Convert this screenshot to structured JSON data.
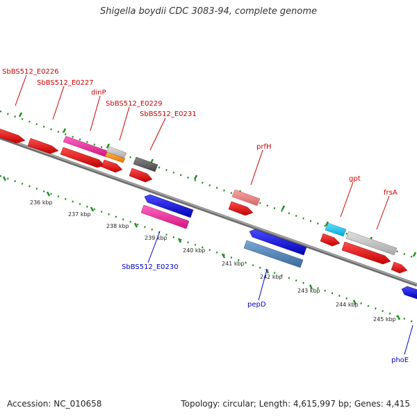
{
  "title": "Shigella boydii CDC 3083-94, complete genome",
  "footer": {
    "accession": "Accession: NC_010658",
    "summary": "Topology: circular; Length: 4,615,997 bp; Genes: 4,415"
  },
  "colors": {
    "backbone": "#808080",
    "dots": "#228b22",
    "forward_label": "#cc0000",
    "reverse_label": "#0000cc"
  },
  "ticks": [
    "236 kbp",
    "237 kbp",
    "238 kbp",
    "239 kbp",
    "240 kbp",
    "241 kbp",
    "242 kbp",
    "243 kbp",
    "244 kbp",
    "245 kbp"
  ],
  "forward_labels": [
    "SbBS512_E0226",
    "SbBS512_E0227",
    "dinP",
    "SbBS512_E0229",
    "SbBS512_E0231",
    "prfH",
    "gpt",
    "frsA"
  ],
  "reverse_labels": [
    "SbBS512_E0230",
    "pepD",
    "phoE"
  ]
}
